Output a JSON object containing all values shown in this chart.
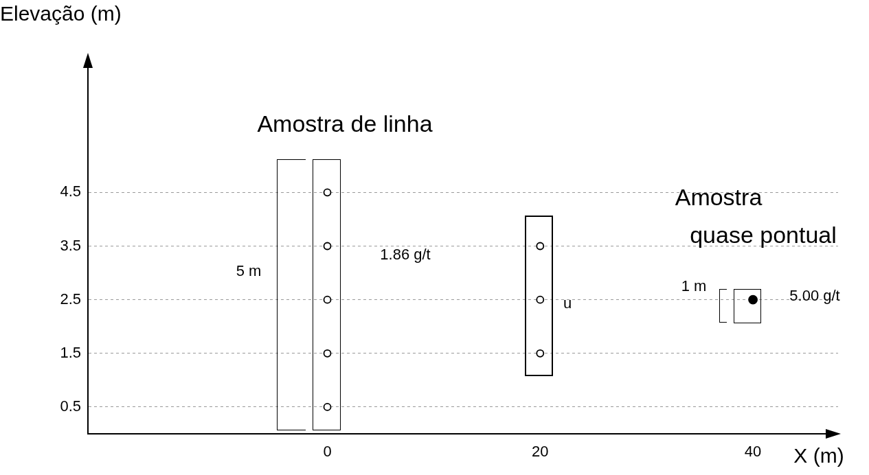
{
  "chart_data": {
    "type": "scatter",
    "ylabel": "Elevação (m)",
    "xlabel": "X (m)",
    "series": [
      {
        "color": "#000000",
        "x": [
          0,
          0,
          0,
          0,
          0,
          20,
          20,
          20
        ],
        "values": [
          0.5,
          1.5,
          2.5,
          3.5,
          4.5,
          1.5,
          2.5,
          3.5
        ]
      },
      {
        "color": "#000000",
        "x": [
          40
        ],
        "values": [
          2.5
        ]
      }
    ],
    "xlim": [
      -22.5,
      48
    ],
    "ylim": [
      0,
      7
    ],
    "xticks": [
      0,
      20,
      40
    ],
    "yticks": [
      0.5,
      1.5,
      2.5,
      3.5,
      4.5
    ],
    "grid": "y",
    "marker": "circle",
    "annotations": [
      "Amostra de linha",
      "1.86 g/t",
      "5 m",
      "u",
      "Amostra",
      "quase pontual",
      "1 m",
      "5.00 g/t"
    ]
  }
}
